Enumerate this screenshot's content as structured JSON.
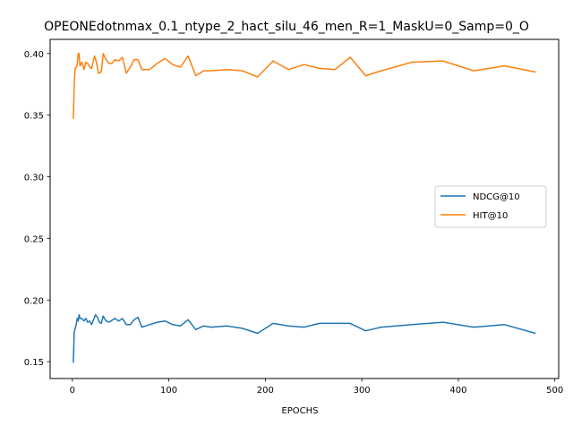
{
  "chart_data": {
    "type": "line",
    "title": "OPEONEdotnmax_0.1_ntype_2_hact_silu_46_men_R=1_MaskU=0_Samp=0_O",
    "xlabel": "EPOCHS",
    "ylabel": "",
    "xlim": [
      -23,
      504
    ],
    "ylim": [
      0.1363,
      0.4115
    ],
    "xticks": [
      0,
      100,
      200,
      300,
      400,
      500
    ],
    "yticks": [
      0.15,
      0.2,
      0.25,
      0.3,
      0.35,
      0.4
    ],
    "ytick_labels": [
      "0.15",
      "0.20",
      "0.25",
      "0.30",
      "0.35",
      "0.40"
    ],
    "legend_position": "center-right",
    "grid": false,
    "series": [
      {
        "name": "NDCG@10",
        "color": "#1f77b4",
        "points": [
          [
            1,
            0.149
          ],
          [
            2,
            0.174
          ],
          [
            4,
            0.18
          ],
          [
            5,
            0.185
          ],
          [
            6,
            0.183
          ],
          [
            7,
            0.188
          ],
          [
            8,
            0.185
          ],
          [
            10,
            0.185
          ],
          [
            12,
            0.183
          ],
          [
            14,
            0.185
          ],
          [
            16,
            0.182
          ],
          [
            18,
            0.183
          ],
          [
            20,
            0.18
          ],
          [
            24,
            0.188
          ],
          [
            26,
            0.186
          ],
          [
            28,
            0.182
          ],
          [
            30,
            0.181
          ],
          [
            32,
            0.187
          ],
          [
            35,
            0.183
          ],
          [
            38,
            0.182
          ],
          [
            40,
            0.183
          ],
          [
            44,
            0.185
          ],
          [
            48,
            0.183
          ],
          [
            52,
            0.185
          ],
          [
            56,
            0.18
          ],
          [
            60,
            0.18
          ],
          [
            64,
            0.184
          ],
          [
            68,
            0.186
          ],
          [
            72,
            0.178
          ],
          [
            80,
            0.18
          ],
          [
            88,
            0.182
          ],
          [
            96,
            0.183
          ],
          [
            104,
            0.18
          ],
          [
            112,
            0.179
          ],
          [
            120,
            0.184
          ],
          [
            128,
            0.176
          ],
          [
            136,
            0.179
          ],
          [
            144,
            0.178
          ],
          [
            160,
            0.179
          ],
          [
            176,
            0.177
          ],
          [
            192,
            0.173
          ],
          [
            208,
            0.181
          ],
          [
            224,
            0.179
          ],
          [
            240,
            0.178
          ],
          [
            256,
            0.181
          ],
          [
            272,
            0.181
          ],
          [
            288,
            0.181
          ],
          [
            304,
            0.175
          ],
          [
            320,
            0.178
          ],
          [
            352,
            0.18
          ],
          [
            384,
            0.182
          ],
          [
            416,
            0.178
          ],
          [
            448,
            0.18
          ],
          [
            480,
            0.173
          ]
        ]
      },
      {
        "name": "HIT@10",
        "color": "#ff7f0e",
        "points": [
          [
            1,
            0.347
          ],
          [
            2,
            0.375
          ],
          [
            3,
            0.388
          ],
          [
            5,
            0.39
          ],
          [
            6,
            0.4
          ],
          [
            7,
            0.4
          ],
          [
            8,
            0.39
          ],
          [
            10,
            0.393
          ],
          [
            12,
            0.387
          ],
          [
            14,
            0.393
          ],
          [
            16,
            0.392
          ],
          [
            18,
            0.389
          ],
          [
            20,
            0.388
          ],
          [
            23,
            0.398
          ],
          [
            25,
            0.393
          ],
          [
            27,
            0.384
          ],
          [
            30,
            0.385
          ],
          [
            32,
            0.4
          ],
          [
            35,
            0.395
          ],
          [
            38,
            0.392
          ],
          [
            41,
            0.392
          ],
          [
            44,
            0.395
          ],
          [
            48,
            0.394
          ],
          [
            52,
            0.397
          ],
          [
            56,
            0.384
          ],
          [
            60,
            0.389
          ],
          [
            64,
            0.395
          ],
          [
            68,
            0.395
          ],
          [
            72,
            0.387
          ],
          [
            80,
            0.387
          ],
          [
            88,
            0.392
          ],
          [
            96,
            0.396
          ],
          [
            104,
            0.391
          ],
          [
            112,
            0.389
          ],
          [
            120,
            0.398
          ],
          [
            128,
            0.382
          ],
          [
            136,
            0.386
          ],
          [
            144,
            0.386
          ],
          [
            160,
            0.387
          ],
          [
            176,
            0.386
          ],
          [
            192,
            0.381
          ],
          [
            208,
            0.394
          ],
          [
            224,
            0.387
          ],
          [
            240,
            0.391
          ],
          [
            256,
            0.388
          ],
          [
            272,
            0.387
          ],
          [
            288,
            0.397
          ],
          [
            304,
            0.382
          ],
          [
            320,
            0.386
          ],
          [
            352,
            0.393
          ],
          [
            384,
            0.394
          ],
          [
            416,
            0.386
          ],
          [
            448,
            0.39
          ],
          [
            480,
            0.385
          ]
        ]
      }
    ]
  }
}
